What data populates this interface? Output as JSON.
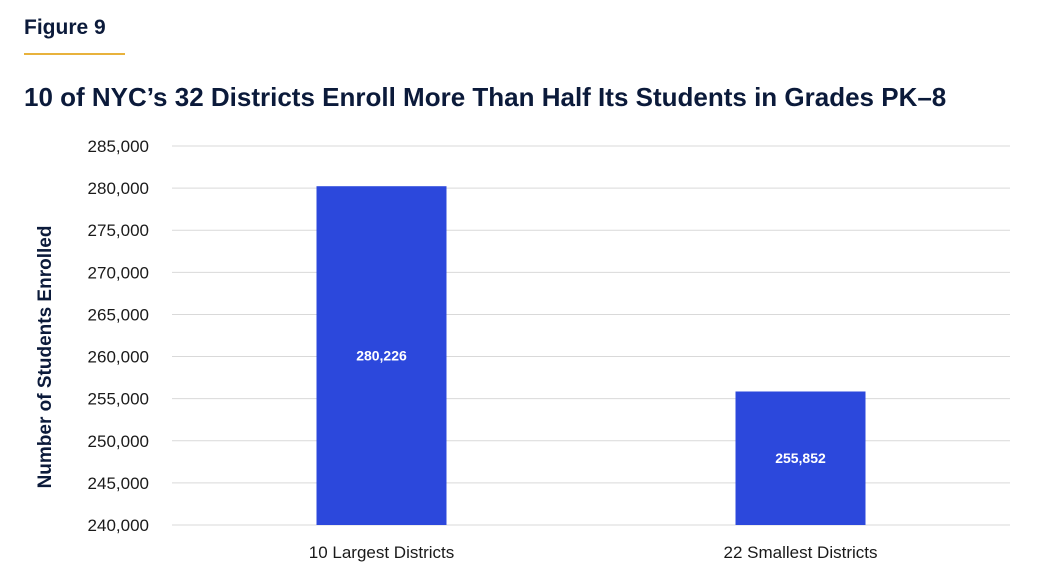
{
  "figure_label": "Figure 9",
  "chart_data": {
    "type": "bar",
    "title": "10 of NYC’s 32 Districts Enroll More Than Half Its Students in Grades PK–8",
    "xlabel": "",
    "ylabel": "Number of Students Enrolled",
    "categories": [
      "10 Largest Districts",
      "22 Smallest Districts"
    ],
    "values": [
      280226,
      255852
    ],
    "data_labels": [
      "280,226",
      "255,852"
    ],
    "ylim": [
      240000,
      285000
    ],
    "yticks": [
      240000,
      245000,
      250000,
      255000,
      260000,
      265000,
      270000,
      275000,
      280000,
      285000
    ],
    "ytick_labels": [
      "240,000",
      "245,000",
      "250,000",
      "255,000",
      "260,000",
      "265,000",
      "270,000",
      "275,000",
      "280,000",
      "285,000"
    ],
    "grid": true,
    "legend": "none",
    "colors": {
      "bar": "#2c48dc",
      "grid": "#d9d9d9",
      "accent_rule": "#e8b23c",
      "title": "#0b1a3a"
    }
  }
}
